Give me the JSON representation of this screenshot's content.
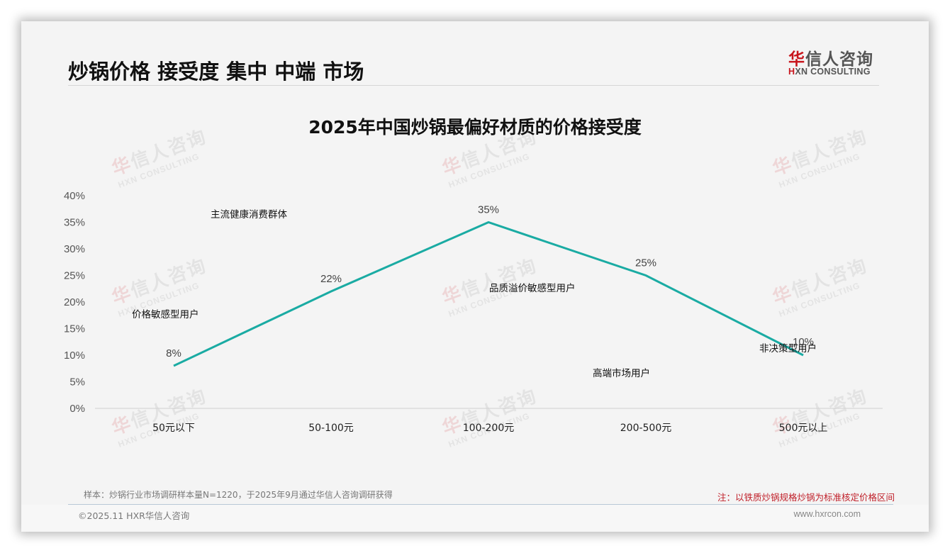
{
  "header": {
    "title": "炒锅价格 接受度 集中 中端 市场",
    "logo_cn_first": "华",
    "logo_cn_rest": "信人咨询",
    "logo_en_first": "H",
    "logo_en_rest": "XN CONSULTING"
  },
  "watermark": {
    "cn_first": "华",
    "cn_rest": "信人咨询",
    "en": "HXN CONSULTING"
  },
  "chart_data": {
    "type": "line",
    "title": "2025年中国炒锅最偏好材质的价格接受度",
    "categories": [
      "50元以下",
      "50-100元",
      "100-200元",
      "200-500元",
      "500元以上"
    ],
    "values": [
      8,
      22,
      35,
      25,
      10
    ],
    "data_labels": [
      "8%",
      "22%",
      "35%",
      "25%",
      "10%"
    ],
    "xlabel": "",
    "ylabel": "",
    "ylim": [
      0,
      40
    ],
    "yticks": [
      "0%",
      "5%",
      "10%",
      "15%",
      "20%",
      "25%",
      "30%",
      "35%",
      "40%"
    ],
    "grid": false,
    "legend": "none",
    "line_color": "#1aaba3",
    "annotations": [
      {
        "text": "价格敏感型用户",
        "near": "50元以下"
      },
      {
        "text": "主流健康消费群体",
        "near": "50-100元"
      },
      {
        "text": "品质溢价敏感型用户",
        "near": "100-200元"
      },
      {
        "text": "高端市场用户",
        "near": "200-500元"
      },
      {
        "text": "非决策型用户",
        "near": "500元以上"
      }
    ]
  },
  "footer": {
    "sample": "样本：炒锅行业市场调研样本量N=1220，于2025年9月通过华信人咨询调研获得",
    "note": "注：以铁质炒锅规格炒锅为标准核定价格区间",
    "copyright": "©2025.11 HXR华信人咨询",
    "website": "www.hxrcon.com"
  }
}
